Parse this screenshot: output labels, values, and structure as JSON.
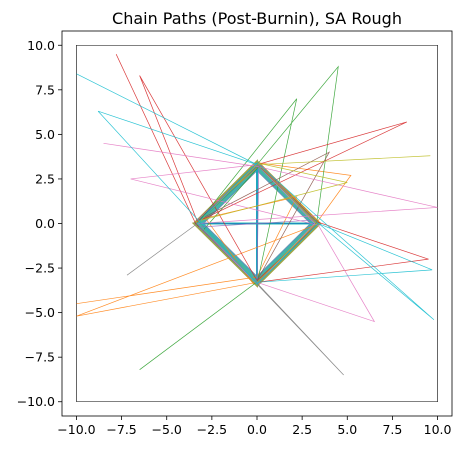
{
  "chart_data": {
    "type": "line",
    "title": "Chain Paths (Post-Burnin), SA Rough",
    "xlabel": "",
    "ylabel": "",
    "xlim": [
      -10.8,
      10.8
    ],
    "ylim": [
      -10.8,
      10.8
    ],
    "xticks": [
      -10.0,
      -7.5,
      -5.0,
      -2.5,
      0.0,
      2.5,
      5.0,
      7.5,
      10.0
    ],
    "yticks": [
      -10.0,
      -7.5,
      -5.0,
      -2.5,
      0.0,
      2.5,
      5.0,
      7.5,
      10.0
    ],
    "xtick_labels": [
      "−10.0",
      "−7.5",
      "−5.0",
      "−2.5",
      "0.0",
      "2.5",
      "5.0",
      "7.5",
      "10.0"
    ],
    "ytick_labels": [
      "−10.0",
      "−7.5",
      "−5.0",
      "−2.5",
      "0.0",
      "2.5",
      "5.0",
      "7.5",
      "10.0"
    ],
    "grid": false,
    "legend": "none",
    "bounding_box": [
      [
        -10,
        -10
      ],
      [
        10,
        -10
      ],
      [
        10,
        10
      ],
      [
        -10,
        10
      ],
      [
        -10,
        -10
      ]
    ],
    "colors": [
      "#1f77b4",
      "#ff7f0e",
      "#2ca02c",
      "#d62728",
      "#9467bd",
      "#8c564b",
      "#e377c2",
      "#7f7f7f",
      "#bcbd22",
      "#17becf"
    ],
    "series": [
      {
        "color": "#1f77b4",
        "path": [
          [
            0,
            3.4
          ],
          [
            3.4,
            0
          ],
          [
            0,
            -3.4
          ],
          [
            -3.4,
            0
          ],
          [
            0,
            3.4
          ],
          [
            0,
            -3.3
          ],
          [
            3.3,
            0
          ],
          [
            -3.3,
            0
          ],
          [
            0,
            3.2
          ]
        ]
      },
      {
        "color": "#ff7f0e",
        "path": [
          [
            -10,
            -4.5
          ],
          [
            0,
            -3.0
          ],
          [
            2.2,
            1.5
          ],
          [
            -3.3,
            0.2
          ],
          [
            0.1,
            3.4
          ],
          [
            5.2,
            2.7
          ],
          [
            3.2,
            -0.1
          ],
          [
            -10,
            -5.2
          ],
          [
            0,
            -3.3
          ],
          [
            3.4,
            0.1
          ],
          [
            0.2,
            3.3
          ],
          [
            -3.0,
            0.5
          ],
          [
            -0.2,
            -3.4
          ]
        ]
      },
      {
        "color": "#2ca02c",
        "path": [
          [
            -6.5,
            -8.2
          ],
          [
            0.1,
            -3.2
          ],
          [
            3.3,
            0
          ],
          [
            4.5,
            8.8
          ],
          [
            0,
            3.3
          ],
          [
            -3.3,
            0
          ],
          [
            2.2,
            7.0
          ],
          [
            0,
            -3.4
          ],
          [
            -3.0,
            -0.4
          ],
          [
            0.1,
            3.2
          ]
        ]
      },
      {
        "color": "#d62728",
        "path": [
          [
            -7.8,
            9.5
          ],
          [
            -3.4,
            0
          ],
          [
            0,
            -3.3
          ],
          [
            9.5,
            -2.0
          ],
          [
            3.3,
            0.1
          ],
          [
            0,
            3.3
          ],
          [
            8.3,
            5.7
          ],
          [
            -3.3,
            0.1
          ],
          [
            -6.5,
            8.3
          ],
          [
            0,
            -3.2
          ],
          [
            3.4,
            0
          ],
          [
            0,
            3.4
          ]
        ]
      },
      {
        "color": "#9467bd",
        "path": [
          [
            0,
            3.3
          ],
          [
            -3.4,
            0.1
          ],
          [
            0,
            -3.3
          ],
          [
            3.3,
            0
          ],
          [
            0.1,
            3.4
          ],
          [
            0,
            -3.4
          ],
          [
            -3.2,
            -0.2
          ],
          [
            3.2,
            0.2
          ]
        ]
      },
      {
        "color": "#8c564b",
        "path": [
          [
            -3.3,
            0
          ],
          [
            0,
            3.4
          ],
          [
            3.3,
            0
          ],
          [
            0,
            -3.3
          ],
          [
            -3.4,
            0.1
          ],
          [
            4.0,
            4.0
          ],
          [
            0,
            -3.2
          ]
        ]
      },
      {
        "color": "#e377c2",
        "path": [
          [
            -8.5,
            4.5
          ],
          [
            0,
            3.2
          ],
          [
            10,
            0.9
          ],
          [
            -3.3,
            0
          ],
          [
            0,
            -3.4
          ],
          [
            3.2,
            0
          ],
          [
            0,
            3.3
          ],
          [
            -7.0,
            2.5
          ],
          [
            3.4,
            -0.1
          ],
          [
            6.5,
            -5.5
          ],
          [
            0,
            -3.3
          ]
        ]
      },
      {
        "color": "#7f7f7f",
        "path": [
          [
            -7.2,
            -2.9
          ],
          [
            -3.3,
            0
          ],
          [
            0,
            3.3
          ],
          [
            3.4,
            0
          ],
          [
            0,
            -3.4
          ],
          [
            4.8,
            -8.5
          ],
          [
            -3.2,
            0.1
          ],
          [
            0,
            3.4
          ]
        ]
      },
      {
        "color": "#bcbd22",
        "path": [
          [
            9.6,
            3.8
          ],
          [
            0,
            3.3
          ],
          [
            -3.3,
            0
          ],
          [
            0,
            -3.3
          ],
          [
            3.3,
            0
          ],
          [
            0,
            3.4
          ],
          [
            5.0,
            2.3
          ],
          [
            -3.4,
            0.1
          ],
          [
            0,
            -3.3
          ]
        ]
      },
      {
        "color": "#17becf",
        "path": [
          [
            -10,
            8.4
          ],
          [
            0,
            3.3
          ],
          [
            -8.8,
            6.3
          ],
          [
            0,
            -3.4
          ],
          [
            3.4,
            0
          ],
          [
            9.7,
            -2.6
          ],
          [
            0,
            -3.3
          ],
          [
            -3.3,
            0
          ],
          [
            0,
            3.4
          ],
          [
            9.8,
            -5.4
          ],
          [
            3.3,
            0.1
          ]
        ]
      }
    ]
  }
}
